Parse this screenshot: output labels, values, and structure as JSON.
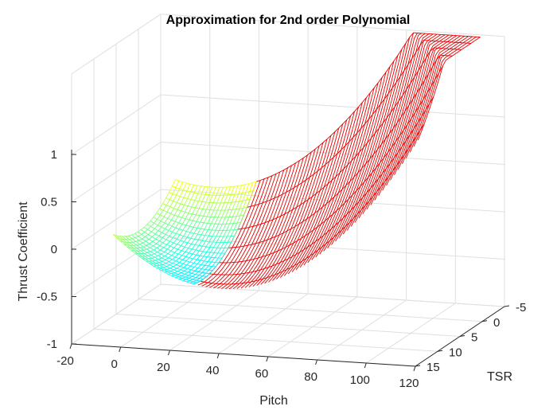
{
  "chart_data": {
    "type": "surface",
    "title": "Approximation for 2nd order Polynomial",
    "xlabel": "Pitch",
    "ylabel": "TSR",
    "zlabel": "Thrust Coefficient",
    "x_ticks": [
      "-20",
      "0",
      "20",
      "40",
      "60",
      "80",
      "100",
      "120"
    ],
    "y_ticks": [
      "-5",
      "0",
      "5",
      "10",
      "15"
    ],
    "z_ticks": [
      "-1",
      "-0.5",
      "0",
      "0.5",
      "1"
    ],
    "xlim": [
      -20,
      120
    ],
    "ylim": [
      -5,
      15
    ],
    "zlim": [
      -1,
      1
    ],
    "grid": true,
    "colormap": "jet (flat color outside the range of the colormap in red)",
    "surface_edge_color_high": "#e60000",
    "surface_edge_color_low": "#0080ff",
    "series": [
      {
        "kind": "measured-surface",
        "x_range": [
          -5,
          28
        ],
        "y_range": [
          0,
          14
        ],
        "z_range": [
          -1,
          1
        ],
        "z_at_corners": {
          "pitch_-5_tsr_0": 0.9,
          "pitch_-5_tsr_14": -0.3,
          "pitch_28_tsr_0": 0.8,
          "pitch_28_tsr_14": -0.7
        }
      },
      {
        "kind": "polynomial-extrapolation",
        "x_range": [
          28,
          120
        ],
        "y_range": [
          0,
          14
        ],
        "z_at_corners": {
          "pitch_28_tsr_0": 0.8,
          "pitch_120_tsr_0": 1.0,
          "pitch_28_tsr_14": -0.7,
          "pitch_120_tsr_14": -0.8
        },
        "z_max_visible": 2.0
      }
    ]
  },
  "figure": {
    "background": "#ffffff",
    "axes_color": "#262626",
    "grid_color": "#dfdfdf"
  }
}
